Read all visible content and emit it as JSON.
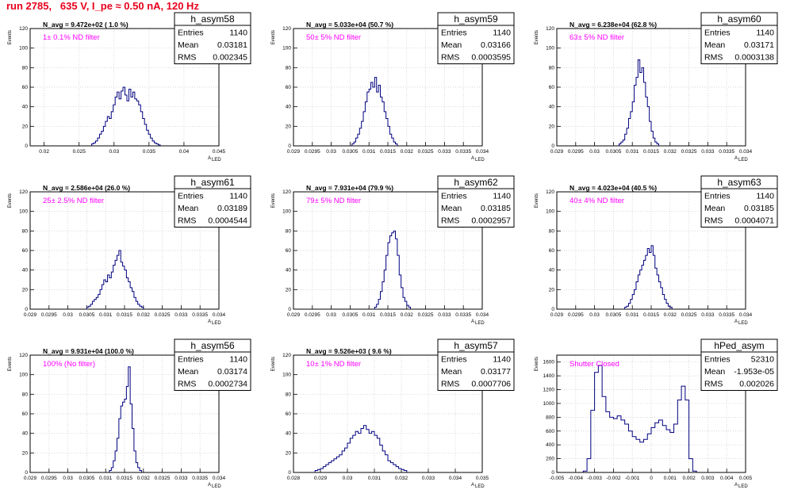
{
  "header": {
    "run_title": "run 2785,   635 V, I_pe ≈ 0.50 nA, 120 Hz"
  },
  "colors": {
    "title": "#e8001c",
    "histogram": "#000080",
    "filter_label": "#ff00ff",
    "grid": "#c8c8c8"
  },
  "stat_labels": {
    "entries": "Entries",
    "mean": "Mean",
    "rms": "RMS"
  },
  "axis_titles": {
    "y": "Events",
    "x": "A",
    "x_sub": "LED"
  },
  "chart_data": [
    {
      "type": "histogram",
      "title": "h_asym58",
      "stats": {
        "entries": "1140",
        "mean": "0.03181",
        "rms": "0.002345"
      },
      "n_avg": "N_avg = 9.472e+02 ( 1.0 %)",
      "filter": "1± 0.1% ND filter",
      "xlim": [
        0.018,
        0.045
      ],
      "ylim": [
        0,
        120
      ],
      "x_ticks": [
        0.02,
        0.025,
        0.03,
        0.035,
        0.04,
        0.045
      ],
      "x_tick_labels": [
        "0.02",
        "0.025",
        "0.03",
        "0.035",
        "0.04",
        "0.045"
      ],
      "y_ticks": [
        0,
        20,
        40,
        60,
        80,
        100,
        120
      ],
      "y_tick_labels": [
        "0",
        "20",
        "40",
        "60",
        "80",
        "100",
        "120"
      ],
      "grid": true,
      "bins": {
        "start": 0.0268,
        "width": 0.00028,
        "counts": [
          2,
          3,
          5,
          8,
          12,
          15,
          20,
          25,
          30,
          28,
          35,
          42,
          50,
          55,
          48,
          56,
          60,
          52,
          46,
          58,
          50,
          55,
          48,
          46,
          42,
          35,
          28,
          22,
          16,
          12,
          8,
          5,
          3,
          2,
          1
        ]
      }
    },
    {
      "type": "histogram",
      "title": "h_asym59",
      "stats": {
        "entries": "1140",
        "mean": "0.03166",
        "rms": "0.0003595"
      },
      "n_avg": "N_avg = 5.033e+04 (50.7 %)",
      "filter": "50± 5% ND filter",
      "xlim": [
        0.029,
        0.034
      ],
      "ylim": [
        0,
        120
      ],
      "x_ticks": [
        0.029,
        0.0295,
        0.03,
        0.0305,
        0.031,
        0.0315,
        0.032,
        0.0325,
        0.033,
        0.0335,
        0.034
      ],
      "x_tick_labels": [
        "0.029",
        "0.0295",
        "0.03",
        "0.0305",
        "0.031",
        "0.0315",
        "0.032",
        "0.0325",
        "0.033",
        "0.0335",
        "0.034"
      ],
      "y_ticks": [
        0,
        20,
        40,
        60,
        80,
        100,
        120
      ],
      "y_tick_labels": [
        "0",
        "20",
        "40",
        "60",
        "80",
        "100",
        "120"
      ],
      "grid": true,
      "bins": {
        "start": 0.03055,
        "width": 5e-05,
        "counts": [
          2,
          4,
          8,
          12,
          18,
          25,
          35,
          45,
          55,
          58,
          65,
          60,
          70,
          55,
          62,
          50,
          45,
          35,
          28,
          20,
          12,
          8,
          4,
          2
        ]
      }
    },
    {
      "type": "histogram",
      "title": "h_asym60",
      "stats": {
        "entries": "1140",
        "mean": "0.03171",
        "rms": "0.0003138"
      },
      "n_avg": "N_avg = 6.238e+04 (62.8 %)",
      "filter": "63± 5% ND filter",
      "xlim": [
        0.029,
        0.034
      ],
      "ylim": [
        0,
        120
      ],
      "x_ticks": [
        0.029,
        0.0295,
        0.03,
        0.0305,
        0.031,
        0.0315,
        0.032,
        0.0325,
        0.033,
        0.0335,
        0.034
      ],
      "x_tick_labels": [
        "0.029",
        "0.0295",
        "0.03",
        "0.0305",
        "0.031",
        "0.0315",
        "0.032",
        "0.0325",
        "0.033",
        "0.0335",
        "0.034"
      ],
      "y_ticks": [
        0,
        20,
        40,
        60,
        80,
        100,
        120
      ],
      "y_tick_labels": [
        "0",
        "20",
        "40",
        "60",
        "80",
        "100",
        "120"
      ],
      "grid": true,
      "bins": {
        "start": 0.03065,
        "width": 5e-05,
        "counts": [
          2,
          4,
          6,
          12,
          18,
          28,
          35,
          45,
          62,
          70,
          88,
          75,
          80,
          65,
          50,
          40,
          25,
          15,
          8,
          4,
          2
        ]
      }
    },
    {
      "type": "histogram",
      "title": "h_asym61",
      "stats": {
        "entries": "1140",
        "mean": "0.03189",
        "rms": "0.0004544"
      },
      "n_avg": "N_avg = 2.586e+04 (26.0 %)",
      "filter": "25± 2.5% ND filter",
      "xlim": [
        0.029,
        0.034
      ],
      "ylim": [
        0,
        120
      ],
      "x_ticks": [
        0.029,
        0.0295,
        0.03,
        0.0305,
        0.031,
        0.0315,
        0.032,
        0.0325,
        0.033,
        0.0335,
        0.034
      ],
      "x_tick_labels": [
        "0.029",
        "0.0295",
        "0.03",
        "0.0305",
        "0.031",
        "0.0315",
        "0.032",
        "0.0325",
        "0.033",
        "0.0335",
        "0.034"
      ],
      "y_ticks": [
        0,
        20,
        40,
        60,
        80,
        100,
        120
      ],
      "y_tick_labels": [
        "0",
        "20",
        "40",
        "60",
        "80",
        "100",
        "120"
      ],
      "grid": true,
      "bins": {
        "start": 0.0305,
        "width": 5e-05,
        "counts": [
          2,
          3,
          5,
          8,
          10,
          12,
          15,
          20,
          25,
          30,
          28,
          35,
          32,
          38,
          45,
          50,
          55,
          60,
          48,
          44,
          40,
          32,
          28,
          22,
          18,
          12,
          8,
          5,
          3,
          2
        ]
      }
    },
    {
      "type": "histogram",
      "title": "h_asym62",
      "stats": {
        "entries": "1140",
        "mean": "0.03185",
        "rms": "0.0002957"
      },
      "n_avg": "N_avg = 7.931e+04 (79.9 %)",
      "filter": "79± 5% ND filter",
      "xlim": [
        0.029,
        0.034
      ],
      "ylim": [
        0,
        120
      ],
      "x_ticks": [
        0.029,
        0.0295,
        0.03,
        0.0305,
        0.031,
        0.0315,
        0.032,
        0.0325,
        0.033,
        0.0335,
        0.034
      ],
      "x_tick_labels": [
        "0.029",
        "0.0295",
        "0.03",
        "0.0305",
        "0.031",
        "0.0315",
        "0.032",
        "0.0325",
        "0.033",
        "0.0335",
        "0.034"
      ],
      "y_ticks": [
        0,
        20,
        40,
        60,
        80,
        100,
        120
      ],
      "y_tick_labels": [
        "0",
        "20",
        "40",
        "60",
        "80",
        "100",
        "120"
      ],
      "grid": true,
      "bins": {
        "start": 0.03115,
        "width": 5e-05,
        "counts": [
          2,
          5,
          10,
          18,
          28,
          40,
          55,
          68,
          75,
          78,
          80,
          72,
          55,
          35,
          22,
          12,
          8,
          4,
          2
        ]
      }
    },
    {
      "type": "histogram",
      "title": "h_asym63",
      "stats": {
        "entries": "1140",
        "mean": "0.03185",
        "rms": "0.0004071"
      },
      "n_avg": "N_avg = 4.023e+04 (40.5 %)",
      "filter": "40± 4% ND filter",
      "xlim": [
        0.029,
        0.034
      ],
      "ylim": [
        0,
        120
      ],
      "x_ticks": [
        0.029,
        0.0295,
        0.03,
        0.0305,
        0.031,
        0.0315,
        0.032,
        0.0325,
        0.033,
        0.0335,
        0.034
      ],
      "x_tick_labels": [
        "0.029",
        "0.0295",
        "0.03",
        "0.0305",
        "0.031",
        "0.0315",
        "0.032",
        "0.0325",
        "0.033",
        "0.0335",
        "0.034"
      ],
      "y_ticks": [
        0,
        20,
        40,
        60,
        80,
        100,
        120
      ],
      "y_tick_labels": [
        "0",
        "20",
        "40",
        "60",
        "80",
        "100",
        "120"
      ],
      "grid": true,
      "bins": {
        "start": 0.0308,
        "width": 5e-05,
        "counts": [
          2,
          3,
          6,
          10,
          15,
          20,
          28,
          35,
          40,
          45,
          50,
          55,
          62,
          58,
          65,
          55,
          42,
          35,
          28,
          22,
          15,
          10,
          6,
          3,
          2
        ]
      }
    },
    {
      "type": "histogram",
      "title": "h_asym56",
      "stats": {
        "entries": "1140",
        "mean": "0.03174",
        "rms": "0.0002734"
      },
      "n_avg": "N_avg = 9.931e+04 (100.0 %)",
      "filter": "100% (No filter)",
      "xlim": [
        0.029,
        0.034
      ],
      "ylim": [
        0,
        120
      ],
      "x_ticks": [
        0.029,
        0.0295,
        0.03,
        0.0305,
        0.031,
        0.0315,
        0.032,
        0.0325,
        0.033,
        0.0335,
        0.034
      ],
      "x_tick_labels": [
        "0.029",
        "0.0295",
        "0.03",
        "0.0305",
        "0.031",
        "0.0315",
        "0.032",
        "0.0325",
        "0.033",
        "0.0335",
        "0.034"
      ],
      "y_ticks": [
        0,
        20,
        40,
        60,
        80,
        100,
        120
      ],
      "y_tick_labels": [
        "0",
        "20",
        "40",
        "60",
        "80",
        "100",
        "120"
      ],
      "grid": true,
      "bins": {
        "start": 0.0311,
        "width": 5e-05,
        "counts": [
          2,
          5,
          12,
          22,
          35,
          55,
          68,
          72,
          75,
          88,
          108,
          70,
          45,
          22,
          10,
          5,
          2
        ]
      }
    },
    {
      "type": "histogram",
      "title": "h_asym57",
      "stats": {
        "entries": "1140",
        "mean": "0.03177",
        "rms": "0.0007706"
      },
      "n_avg": "N_avg = 9.526e+03 ( 9.6 %)",
      "filter": "10± 1% ND filter",
      "xlim": [
        0.028,
        0.035
      ],
      "ylim": [
        0,
        120
      ],
      "x_ticks": [
        0.028,
        0.029,
        0.03,
        0.031,
        0.032,
        0.033,
        0.034,
        0.035
      ],
      "x_tick_labels": [
        "0.028",
        "0.029",
        "0.03",
        "0.031",
        "0.032",
        "0.033",
        "0.034",
        "0.035"
      ],
      "y_ticks": [
        0,
        20,
        40,
        60,
        80,
        100,
        120
      ],
      "y_tick_labels": [
        "0",
        "20",
        "40",
        "60",
        "80",
        "100",
        "120"
      ],
      "grid": true,
      "bins": {
        "start": 0.0288,
        "width": 0.0001,
        "counts": [
          2,
          3,
          4,
          6,
          8,
          10,
          12,
          14,
          16,
          18,
          22,
          25,
          30,
          35,
          38,
          42,
          40,
          45,
          48,
          44,
          40,
          42,
          38,
          35,
          28,
          22,
          18,
          12,
          10,
          8,
          6,
          4,
          3,
          2
        ]
      }
    },
    {
      "type": "histogram",
      "title": "hPed_asym",
      "stats": {
        "entries": "52310",
        "mean": "-1.953e-05",
        "rms": "0.002026"
      },
      "n_avg": "",
      "filter": "Shutter Closed",
      "xlim": [
        -0.005,
        0.005
      ],
      "ylim": [
        0,
        1700
      ],
      "x_ticks": [
        -0.005,
        -0.004,
        -0.003,
        -0.002,
        -0.001,
        0,
        0.001,
        0.002,
        0.003,
        0.004,
        0.005
      ],
      "x_tick_labels": [
        "-0.005",
        "-0.004",
        "-0.003",
        "-0.002",
        "-0.001",
        "0",
        "0.001",
        "0.002",
        "0.003",
        "0.004",
        "0.005"
      ],
      "y_ticks": [
        0,
        200,
        400,
        600,
        800,
        1000,
        1200,
        1400,
        1600
      ],
      "y_tick_labels": [
        "0",
        "200",
        "400",
        "600",
        "800",
        "1000",
        "1200",
        "1400",
        "1600"
      ],
      "grid": true,
      "bins": {
        "start": -0.0036,
        "width": 0.0002,
        "counts": [
          20,
          200,
          900,
          1450,
          1550,
          1100,
          880,
          800,
          780,
          820,
          760,
          700,
          600,
          520,
          480,
          440,
          480,
          560,
          650,
          720,
          760,
          680,
          620,
          580,
          700,
          1050,
          1250,
          1050,
          200,
          20
        ]
      }
    }
  ]
}
